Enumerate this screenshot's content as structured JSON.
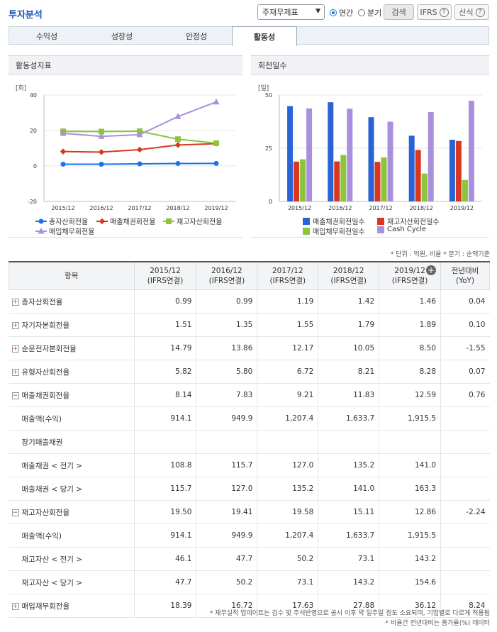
{
  "header": {
    "title": "투자분석",
    "select_value": "주재무제표",
    "radio_annual": "연간",
    "radio_quarter": "분기",
    "search_btn": "검색",
    "ifrs_btn": "IFRS",
    "calc_btn": "산식"
  },
  "tabs": [
    {
      "label": "수익성"
    },
    {
      "label": "성장성"
    },
    {
      "label": "안정성"
    },
    {
      "label": "활동성"
    }
  ],
  "chart_left": {
    "panel_title": "활동성지표",
    "unit": "[회]",
    "yticks": [
      "40",
      "20",
      "0",
      "-20"
    ],
    "legend": [
      "총자산회전율",
      "매출채권회전율",
      "재고자산회전율",
      "매입채무회전율"
    ]
  },
  "chart_right": {
    "panel_title": "회전일수",
    "unit": "[일]",
    "yticks": [
      "50",
      "25",
      "0"
    ],
    "legend": [
      "매출채권회전일수",
      "재고자산회전일수",
      "매입채무회전일수",
      "Cash Cycle"
    ]
  },
  "chart_data": [
    {
      "type": "line",
      "x": [
        "2015/12",
        "2016/12",
        "2017/12",
        "2018/12",
        "2019/12"
      ],
      "ylim": [
        -20,
        40
      ],
      "series": [
        {
          "name": "총자산회전율",
          "color": "#1a73e8",
          "values": [
            0.99,
            0.99,
            1.19,
            1.42,
            1.46
          ]
        },
        {
          "name": "매출채권회전율",
          "color": "#d9381e",
          "values": [
            8.14,
            7.83,
            9.21,
            11.83,
            12.59
          ]
        },
        {
          "name": "재고자산회전율",
          "color": "#8cc43c",
          "values": [
            19.5,
            19.41,
            19.58,
            15.11,
            12.86
          ]
        },
        {
          "name": "매입채무회전율",
          "color": "#a98fdc",
          "values": [
            18.39,
            16.72,
            17.63,
            27.88,
            36.12
          ]
        }
      ]
    },
    {
      "type": "bar",
      "categories": [
        "2015/12",
        "2016/12",
        "2017/12",
        "2018/12",
        "2019/12"
      ],
      "ylim": [
        0,
        50
      ],
      "series": [
        {
          "name": "매출채권회전일수",
          "color": "#2a62d8",
          "values": [
            44.8,
            46.6,
            39.6,
            30.9,
            29.0
          ]
        },
        {
          "name": "재고자산회전일수",
          "color": "#d9381e",
          "values": [
            18.7,
            18.8,
            18.6,
            24.2,
            28.4
          ]
        },
        {
          "name": "매입채무회전일수",
          "color": "#8cc43c",
          "values": [
            19.8,
            21.8,
            20.7,
            13.1,
            10.1
          ]
        },
        {
          "name": "Cash Cycle",
          "color": "#a98fdc",
          "values": [
            43.7,
            43.6,
            37.5,
            42.0,
            47.3
          ]
        }
      ]
    }
  ],
  "units_note": "* 단위 : 억원, 비율   * 분기 : 순액기준",
  "table": {
    "head_item": "항목",
    "columns": [
      {
        "year": "2015/12",
        "basis": "(IFRS연결)"
      },
      {
        "year": "2016/12",
        "basis": "(IFRS연결)"
      },
      {
        "year": "2017/12",
        "basis": "(IFRS연결)"
      },
      {
        "year": "2018/12",
        "basis": "(IFRS연결)"
      },
      {
        "year": "2019/12",
        "basis": "(IFRS연결)"
      }
    ],
    "yoy_head": "전년대비",
    "yoy_sub": "(YoY)",
    "rows": [
      {
        "label": "총자산회전율",
        "kind": "plus",
        "vals": [
          "0.99",
          "0.99",
          "1.19",
          "1.42",
          "1.46"
        ],
        "yoy": "0.04"
      },
      {
        "label": "자기자본회전율",
        "kind": "plus",
        "vals": [
          "1.51",
          "1.35",
          "1.55",
          "1.79",
          "1.89"
        ],
        "yoy": "0.10"
      },
      {
        "label": "순운전자본회전율",
        "kind": "plus",
        "vals": [
          "14.79",
          "13.86",
          "12.17",
          "10.05",
          "8.50"
        ],
        "yoy": "-1.55"
      },
      {
        "label": "유형자산회전율",
        "kind": "plus",
        "vals": [
          "5.82",
          "5.80",
          "6.72",
          "8.21",
          "8.28"
        ],
        "yoy": "0.07"
      },
      {
        "label": "매출채권회전율",
        "kind": "minus",
        "vals": [
          "8.14",
          "7.83",
          "9.21",
          "11.83",
          "12.59"
        ],
        "yoy": "0.76"
      },
      {
        "label": "매출액(수익)",
        "kind": "sub",
        "vals": [
          "914.1",
          "949.9",
          "1,207.4",
          "1,633.7",
          "1,915.5"
        ],
        "yoy": ""
      },
      {
        "label": "장기매출채권",
        "kind": "sub",
        "vals": [
          "",
          "",
          "",
          "",
          ""
        ],
        "yoy": ""
      },
      {
        "label": "매출채권 < 전기 >",
        "kind": "sub",
        "vals": [
          "108.8",
          "115.7",
          "127.0",
          "135.2",
          "141.0"
        ],
        "yoy": ""
      },
      {
        "label": "매출채권 < 당기 >",
        "kind": "sub",
        "vals": [
          "115.7",
          "127.0",
          "135.2",
          "141.0",
          "163.3"
        ],
        "yoy": ""
      },
      {
        "label": "재고자산회전율",
        "kind": "minus",
        "vals": [
          "19.50",
          "19.41",
          "19.58",
          "15.11",
          "12.86"
        ],
        "yoy": "-2.24"
      },
      {
        "label": "매출액(수익)",
        "kind": "sub",
        "vals": [
          "914.1",
          "949.9",
          "1,207.4",
          "1,633.7",
          "1,915.5"
        ],
        "yoy": ""
      },
      {
        "label": "재고자산 < 전기 >",
        "kind": "sub",
        "vals": [
          "46.1",
          "47.7",
          "50.2",
          "73.1",
          "143.2"
        ],
        "yoy": ""
      },
      {
        "label": "재고자산 < 당기 >",
        "kind": "sub",
        "vals": [
          "47.7",
          "50.2",
          "73.1",
          "143.2",
          "154.6"
        ],
        "yoy": ""
      },
      {
        "label": "매입채무회전율",
        "kind": "plus",
        "vals": [
          "18.39",
          "16.72",
          "17.63",
          "27.88",
          "36.12"
        ],
        "yoy": "8.24"
      }
    ]
  },
  "footnotes": [
    "* 재무실적 업데이트는 검수 및 주석반영으로 공시 이후 약 일주일 정도 소요되며, 기업별로 다르게 적용됨",
    "* 비율간 전년대비는 증가율(%) 데이터"
  ]
}
